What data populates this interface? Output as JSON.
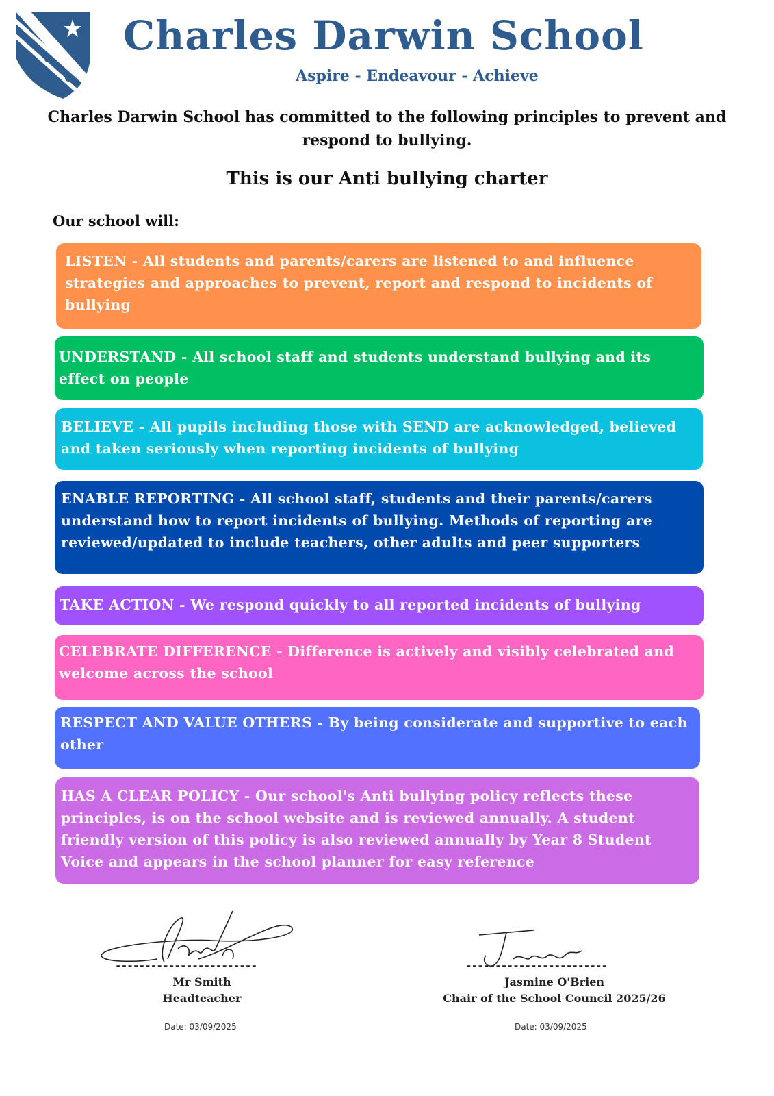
{
  "header": {
    "school_name": "Charles Darwin School",
    "motto": "Aspire - Endeavour - Achieve",
    "crest": "school-crest-shield-with-star"
  },
  "intro": "Charles  Darwin School has committed to the following principles to prevent and respond to bullying.",
  "charter_heading": "This is our Anti bullying charter",
  "lead_in": "Our school will:",
  "principles": [
    {
      "text": "LISTEN - All students and parents/carers are listened to and influence strategies and approaches to prevent, report and respond to incidents of bullying",
      "color": "#FF914D"
    },
    {
      "text": "UNDERSTAND - All school staff and students understand bullying and its effect on people",
      "color": "#00BF63"
    },
    {
      "text": "BELIEVE - All pupils including those with SEND are acknowledged, believed and taken seriously when reporting incidents of bullying",
      "color": "#0CC0DF"
    },
    {
      "text": "ENABLE REPORTING - All school staff, students and their parents/carers understand how to report incidents of bullying. Methods of reporting are reviewed/updated to include  teachers, other adults and peer supporters",
      "color": "#004AAD"
    },
    {
      "text": "TAKE ACTION - We respond quickly to all reported incidents of bullying",
      "color": "#A052FF"
    },
    {
      "text": "CELEBRATE DIFFERENCE - Difference is actively and visibly celebrated and welcome across the school",
      "color": "#FF66C4"
    },
    {
      "text": "RESPECT AND VALUE OTHERS - By being considerate and supportive to each other",
      "color": "#5271FF"
    },
    {
      "text": "HAS A CLEAR POLICY - Our school's Anti bullying policy reflects these principles, is on the school website and is reviewed annually. A student friendly version of this policy is also reviewed annually by Year 8 Student Voice and appears in the school planner for easy reference",
      "color": "#CB6CE6"
    }
  ],
  "signatures": [
    {
      "name": "Mr Smith",
      "role": "Headteacher",
      "date": "Date: 03/09/2025",
      "line": "------------------------"
    },
    {
      "name": "Jasmine O'Brien",
      "role": "Chair of the School Council 2025/26",
      "date": "Date: 03/09/2025",
      "line": "------------------------"
    }
  ]
}
